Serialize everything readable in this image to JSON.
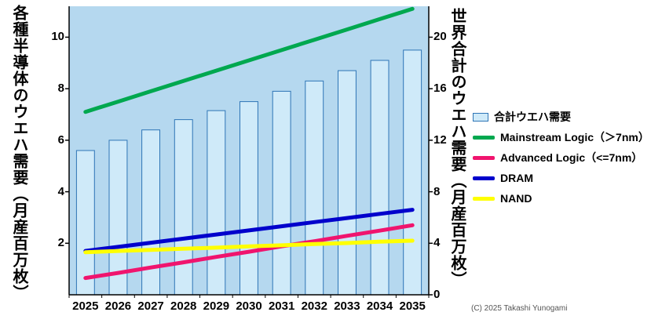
{
  "chart_data": {
    "type": "bar+line",
    "categories": [
      "2025",
      "2026",
      "2027",
      "2028",
      "2029",
      "2030",
      "2031",
      "2032",
      "2033",
      "2034",
      "2035"
    ],
    "bar_series": {
      "name": "合計ウエハ需要",
      "axis": "right",
      "fill": "#cfeaf9",
      "stroke": "#2e75b6",
      "values": [
        11.2,
        12.0,
        12.8,
        13.6,
        14.3,
        15.0,
        15.8,
        16.6,
        17.4,
        18.2,
        19.0
      ]
    },
    "line_series": [
      {
        "name": "Mainstream Logic（＞7nm）",
        "axis": "left",
        "color": "#00a84f",
        "values": [
          7.1,
          7.5,
          7.9,
          8.3,
          8.7,
          9.1,
          9.5,
          9.9,
          10.3,
          10.7,
          11.1
        ]
      },
      {
        "name": "Advanced Logic（<=7nm）",
        "axis": "left",
        "color": "#f0146e",
        "values": [
          0.65,
          0.85,
          1.06,
          1.26,
          1.47,
          1.67,
          1.88,
          2.08,
          2.29,
          2.49,
          2.7
        ]
      },
      {
        "name": "DRAM",
        "axis": "left",
        "color": "#0000cc",
        "values": [
          1.7,
          1.86,
          2.02,
          2.18,
          2.34,
          2.5,
          2.66,
          2.82,
          2.98,
          3.14,
          3.3
        ]
      },
      {
        "name": "NAND",
        "axis": "left",
        "color": "#ffff00",
        "values": [
          1.65,
          1.7,
          1.74,
          1.79,
          1.83,
          1.88,
          1.92,
          1.97,
          2.01,
          2.06,
          2.1
        ]
      }
    ],
    "left_axis": {
      "label": "各種半導体のウエハ需要（月産百万枚）",
      "ticks": [
        2,
        4,
        6,
        8,
        10
      ],
      "max": 11.2
    },
    "right_axis": {
      "label": "世界合計のウエハ需要（月産百万枚）",
      "ticks": [
        0,
        4,
        8,
        12,
        16,
        20
      ],
      "max": 22.4
    },
    "plot_background": "#b5d8ef",
    "grid": false,
    "legend_position": "right"
  },
  "legend": {
    "items": [
      {
        "label": "合計ウエハ需要",
        "swatch": "box",
        "color": "#cfeaf9",
        "border": "#2e75b6"
      },
      {
        "label": "Mainstream Logic（＞7nm）",
        "swatch": "line",
        "color": "#00a84f"
      },
      {
        "label": "Advanced Logic（<=7nm）",
        "swatch": "line",
        "color": "#f0146e"
      },
      {
        "label": "DRAM",
        "swatch": "line",
        "color": "#0000cc"
      },
      {
        "label": "NAND",
        "swatch": "line",
        "color": "#ffff00"
      }
    ]
  },
  "footer": {
    "copyright": "(C) 2025 Takashi Yunogami"
  }
}
